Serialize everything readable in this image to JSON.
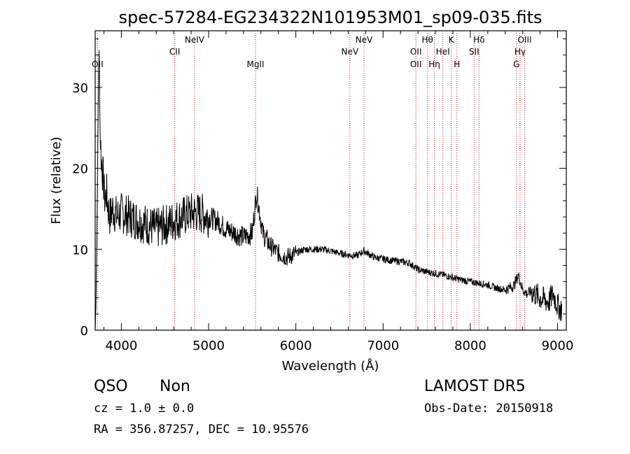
{
  "chart_data": {
    "type": "line",
    "title": "spec-57284-EG234322N101953M01_sp09-035.fits",
    "xlabel": "Wavelength (Å)",
    "ylabel": "Flux (relative)",
    "xlim": [
      3700,
      9100
    ],
    "ylim": [
      0,
      37
    ],
    "x_ticks": [
      4000,
      5000,
      6000,
      7000,
      8000,
      9000
    ],
    "y_ticks": [
      0,
      10,
      20,
      30
    ],
    "grid": false,
    "legend": "none",
    "line_color": "#000000",
    "marker_color": "#cc2222",
    "series": [
      {
        "x": [
          3700,
          3710,
          3725,
          3735,
          3745,
          3755,
          3770,
          3790,
          3810,
          3830,
          3850,
          3870,
          3900,
          3950,
          4000,
          4100,
          4200,
          4300,
          4400,
          4500,
          4600,
          4700,
          4800,
          4900,
          5000,
          5100,
          5200,
          5300,
          5400,
          5500,
          5550,
          5580,
          5620,
          5700,
          5800,
          5900,
          6000,
          6100,
          6200,
          6300,
          6400,
          6500,
          6600,
          6700,
          6780,
          6900,
          7000,
          7100,
          7200,
          7300,
          7400,
          7500,
          7600,
          7700,
          7800,
          7900,
          8000,
          8100,
          8200,
          8300,
          8400,
          8500,
          8550,
          8600,
          8650,
          8700,
          8800,
          8900,
          8950,
          9000,
          9050
        ],
        "y": [
          0,
          4,
          17,
          28,
          35,
          25,
          21,
          19,
          16,
          17,
          15,
          14,
          15,
          14,
          14.5,
          14,
          13.5,
          13,
          12.5,
          13,
          13.5,
          14,
          14.5,
          14.5,
          14,
          13.5,
          12.5,
          12,
          11.5,
          12,
          17,
          15,
          12,
          10.5,
          9.5,
          9,
          9.5,
          10,
          10,
          10,
          9.8,
          9.5,
          9.3,
          9.2,
          9.8,
          9,
          8.8,
          8.6,
          8.5,
          8.3,
          7.5,
          7.2,
          7,
          6.8,
          6.5,
          6.2,
          6,
          5.8,
          5.6,
          5.2,
          5,
          5.5,
          6.8,
          5,
          4.5,
          4.8,
          4,
          3.5,
          4.5,
          3,
          2.5
        ]
      }
    ],
    "lines": [
      {
        "label": "OII",
        "x": 3727,
        "row": 3
      },
      {
        "label": "CII",
        "x": 4612,
        "row": 2
      },
      {
        "label": "NeIV",
        "x": 4839,
        "row": 1
      },
      {
        "label": "MgII",
        "x": 5538,
        "row": 3
      },
      {
        "label": "NeV",
        "x": 6619,
        "row": 2
      },
      {
        "label": "NeV",
        "x": 6781,
        "row": 1
      },
      {
        "label": "OII",
        "x": 7376,
        "row": 2
      },
      {
        "label": "OII",
        "x": 7376,
        "row": 3
      },
      {
        "label": "Hθ",
        "x": 7509,
        "row": 1
      },
      {
        "label": "Hη",
        "x": 7588,
        "row": 3
      },
      {
        "label": "HeI",
        "x": 7685,
        "row": 2
      },
      {
        "label": "K",
        "x": 7781,
        "row": 1
      },
      {
        "label": "H",
        "x": 7846,
        "row": 3
      },
      {
        "label": "SII",
        "x": 8043,
        "row": 2
      },
      {
        "label": "Hδ",
        "x": 8100,
        "row": 1
      },
      {
        "label": "G",
        "x": 8529,
        "row": 3
      },
      {
        "label": "Hγ",
        "x": 8570,
        "row": 2
      },
      {
        "label": "OIII",
        "x": 8623,
        "row": 1
      }
    ]
  },
  "info": {
    "class": "QSO",
    "subclass": "Non",
    "survey": "LAMOST DR5",
    "cz": "cz = 1.0 ± 0.0",
    "obs_date": "Obs-Date: 20150918",
    "radec": "RA = 356.87257, DEC =  10.95576"
  }
}
